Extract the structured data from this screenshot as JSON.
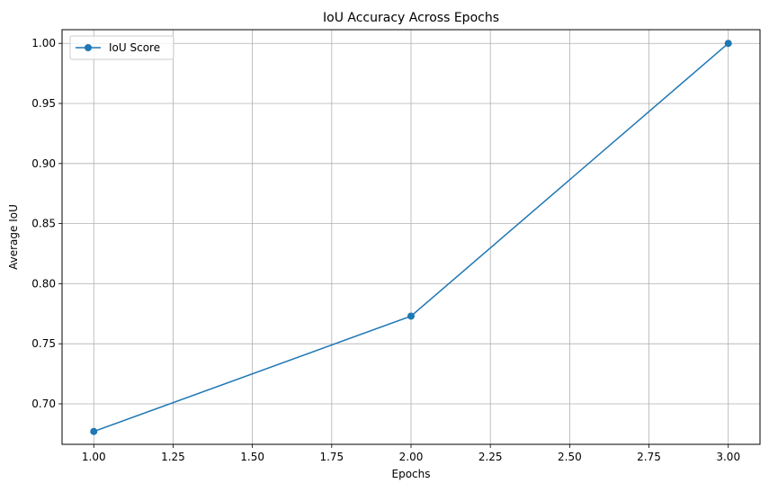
{
  "chart_data": {
    "type": "line",
    "title": "IoU Accuracy Across Epochs",
    "xlabel": "Epochs",
    "ylabel": "Average IoU",
    "xlim": [
      0.9,
      3.1
    ],
    "ylim": [
      0.6663,
      1.0114
    ],
    "x_ticks": [
      "1.00",
      "1.25",
      "1.50",
      "1.75",
      "2.00",
      "2.25",
      "2.50",
      "2.75",
      "3.00"
    ],
    "y_ticks": [
      "0.70",
      "0.75",
      "0.80",
      "0.85",
      "0.90",
      "0.95",
      "1.00"
    ],
    "grid": true,
    "legend_position": "upper-left",
    "series": [
      {
        "name": "IoU Score",
        "color": "#1f77b4",
        "marker": "circle",
        "x": [
          1,
          2,
          3
        ],
        "y": [
          0.677,
          0.773,
          1.0
        ]
      }
    ]
  }
}
